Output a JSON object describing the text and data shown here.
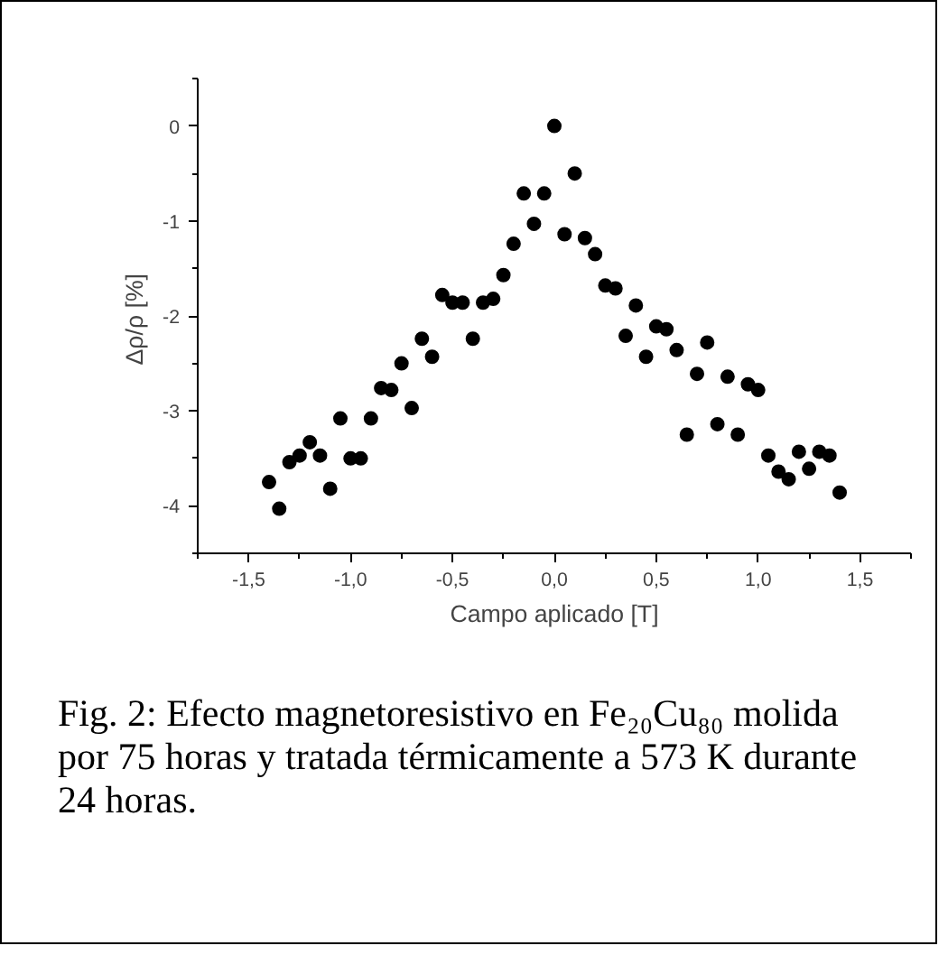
{
  "chart_data": {
    "type": "scatter",
    "xlabel": "Campo aplicado [T]",
    "ylabel": "Δρ/ρ  [%]",
    "x": [
      -1.4,
      -1.35,
      -1.3,
      -1.25,
      -1.2,
      -1.15,
      -1.1,
      -1.05,
      -1.0,
      -0.95,
      -0.9,
      -0.85,
      -0.8,
      -0.75,
      -0.7,
      -0.65,
      -0.6,
      -0.55,
      -0.5,
      -0.45,
      -0.4,
      -0.35,
      -0.3,
      -0.25,
      -0.2,
      -0.15,
      -0.1,
      -0.05,
      0.0,
      0.05,
      0.1,
      0.15,
      0.2,
      0.25,
      0.3,
      0.35,
      0.4,
      0.45,
      0.5,
      0.55,
      0.6,
      0.65,
      0.7,
      0.75,
      0.8,
      0.85,
      0.9,
      0.95,
      1.0,
      1.05,
      1.1,
      1.15,
      1.2,
      1.25,
      1.3,
      1.35,
      1.4
    ],
    "series": [
      {
        "color": "#000000",
        "values": [
          -3.75,
          -4.03,
          -3.54,
          -3.47,
          -3.33,
          -3.47,
          -3.82,
          -3.08,
          -3.5,
          -3.5,
          -3.08,
          -2.76,
          -2.78,
          -2.5,
          -2.97,
          -2.24,
          -2.43,
          -1.78,
          -1.86,
          -1.86,
          -2.24,
          -1.86,
          -1.82,
          -1.57,
          -1.24,
          -0.71,
          -1.03,
          -0.71,
          0.0,
          -1.14,
          -0.5,
          -1.18,
          -1.35,
          -1.68,
          -1.71,
          -2.21,
          -1.89,
          -2.43,
          -2.11,
          -2.14,
          -2.36,
          -3.25,
          -2.61,
          -2.28,
          -3.14,
          -2.64,
          -3.25,
          -2.72,
          -2.78,
          -3.47,
          -3.64,
          -3.72,
          -3.43,
          -3.61,
          -3.43,
          -3.47,
          -3.86
        ]
      }
    ],
    "xlim": [
      -1.75,
      1.75
    ],
    "ylim": [
      -4.5,
      0.5
    ],
    "xticks": [
      {
        "value": -1.5,
        "label": "-1,5"
      },
      {
        "value": -1.0,
        "label": "-1,0"
      },
      {
        "value": -0.5,
        "label": "-0,5"
      },
      {
        "value": 0.0,
        "label": "0,0"
      },
      {
        "value": 0.5,
        "label": "0,5"
      },
      {
        "value": 1.0,
        "label": "1,0"
      },
      {
        "value": 1.5,
        "label": "1,5"
      }
    ],
    "yticks": [
      -4,
      -3,
      -2,
      -1,
      0
    ],
    "marker": "circle",
    "grid": false,
    "annotations": [
      "Fig. 2: Efecto magnetoresistivo en Fe₂₀Cu₈₀ molida por 75 horas y tratada térmicamente a 573 K durante 24 horas."
    ]
  }
}
